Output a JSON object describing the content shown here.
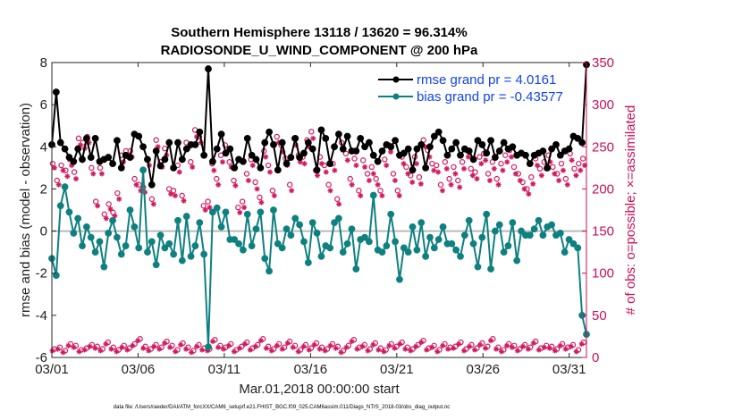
{
  "chart_data": {
    "type": "line",
    "title": "Southern Hemisphere 13118 / 13620 = 96.314%",
    "subtitle": "RADIOSONDE_U_WIND_COMPONENT @ 200 hPa",
    "xlabel": "Mar.01,2018 00:00:00 start",
    "ylabel": "rmse and bias (model - observation)",
    "y2label": "# of obs: o=possible; ×=assimilated",
    "x_ticks": [
      "03/01",
      "03/06",
      "03/11",
      "03/16",
      "03/21",
      "03/26",
      "03/31"
    ],
    "x_tick_days": [
      0,
      5,
      10,
      15,
      20,
      25,
      30
    ],
    "xlim": [
      0,
      31.0
    ],
    "ylim": [
      -6,
      8
    ],
    "y_ticks": [
      "-6",
      "-4",
      "-2",
      "0",
      "2",
      "4",
      "6",
      "8"
    ],
    "y2lim": [
      0,
      350
    ],
    "y2_ticks": [
      "0",
      "50",
      "100",
      "150",
      "200",
      "250",
      "300",
      "350"
    ],
    "zero_line": 0,
    "legend_position": "top-right",
    "series": [
      {
        "name": "rmse grand pr = 4.0161",
        "color": "#000000",
        "values": [
          4.1,
          6.6,
          4.2,
          3.9,
          3.5,
          3.3,
          3.9,
          3.4,
          4.4,
          3.5,
          4.4,
          3.3,
          3.4,
          3.5,
          3.2,
          4.3,
          3.0,
          3.6,
          3.5,
          4.6,
          4.5,
          4.0,
          3.4,
          3.3,
          3.8,
          3.1,
          3.4,
          4.2,
          3.0,
          4.2,
          3.4,
          3.9,
          4.1,
          4.1,
          4.7,
          3.6,
          4.3,
          3.3,
          3.9,
          4.6,
          3.7,
          3.9,
          3.0,
          3.4,
          3.3,
          4.4,
          3.6,
          3.4,
          3.0,
          4.2,
          4.7,
          4.1,
          2.9,
          4.2,
          3.2,
          3.5,
          4.4,
          3.5,
          3.7,
          4.2,
          3.9,
          2.9,
          4.8,
          4.4,
          3.2,
          4.0,
          4.6,
          3.9,
          4.5,
          3.8,
          3.8,
          4.4,
          4.0,
          4.2,
          3.6,
          3.3,
          3.8,
          4.1,
          4.0,
          4.3,
          3.6,
          3.7,
          3.9,
          2.9,
          3.9,
          4.1,
          3.0,
          4.0,
          4.5,
          4.7,
          4.3,
          3.6,
          3.9,
          4.2,
          3.6,
          3.9,
          3.8,
          3.4,
          4.3,
          4.1,
          3.7,
          4.3,
          3.5,
          3.8,
          4.2,
          3.9,
          4.0,
          3.6,
          3.7,
          3.6,
          3.2,
          3.6,
          3.7,
          3.8,
          3.0,
          3.9,
          4.1,
          3.6,
          3.8,
          3.9,
          4.5,
          4.4,
          4.2,
          7.9
        ],
        "spikes": [
          [
            9.0,
            7.7
          ],
          [
            5.8,
            2.2
          ]
        ]
      },
      {
        "name": "bias grand pr = -0.43577",
        "color": "#0f8080",
        "values": [
          -1.3,
          -2.1,
          1.2,
          2.1,
          0.9,
          -0.1,
          0.6,
          -0.7,
          0.2,
          -0.3,
          -1.0,
          -0.5,
          -1.7,
          -0.1,
          0.5,
          -0.3,
          -1.1,
          -0.7,
          1.0,
          0.2,
          -0.8,
          -1.9,
          -1.0,
          -0.5,
          -1.6,
          -0.2,
          -0.8,
          -0.6,
          -1.1,
          0.5,
          -1.4,
          0.7,
          -1.2,
          -0.7,
          0.4,
          -1.1,
          -0.1,
          0.9,
          1.1,
          0.2,
          0.9,
          -0.4,
          -0.4,
          -0.6,
          -0.9,
          0.8,
          -0.7,
          0.1,
          0.9,
          -1.3,
          -1.9,
          1.0,
          -0.6,
          -0.8,
          0.1,
          -0.2,
          0.6,
          0.3,
          -0.5,
          -1.5,
          0.4,
          -0.1,
          -1.2,
          -0.7,
          -0.8,
          0.4,
          0.6,
          -1.0,
          -0.6,
          0.1,
          -1.8,
          -0.4,
          -0.3,
          -0.5,
          1.7,
          -0.9,
          -1.0,
          -0.7,
          0.8,
          -0.5,
          -2.3,
          -0.8,
          -1.0,
          0.2,
          -0.9,
          0.4,
          -1.2,
          -0.3,
          -0.8,
          -0.4,
          0.2,
          -0.6,
          -0.6,
          -0.9,
          -1.2,
          -0.2,
          0.5,
          -0.6,
          -1.7,
          -0.3,
          0.8,
          -1.8,
          0.0,
          0.3,
          -1.0,
          -0.7,
          0.4,
          -1.4,
          0.0,
          -0.2,
          -0.2,
          0.1,
          0.5,
          -0.2,
          0.2,
          0.3,
          -0.2,
          -0.1,
          -1.0,
          -0.4,
          -0.6,
          -0.8,
          -4.0,
          -4.9
        ],
        "spikes": [
          [
            5.4,
            2.9
          ],
          [
            9.15,
            -5.5
          ]
        ]
      }
    ],
    "obs_possible": {
      "marker": "o",
      "color": "#d21a5f",
      "values": [
        230,
        210,
        228,
        222,
        235,
        220,
        260,
        255,
        262,
        225,
        185,
        225,
        170,
        182,
        172,
        195,
        240,
        245,
        245,
        212,
        205,
        202,
        235,
        188,
        258,
        232,
        248,
        200,
        198,
        228,
        192,
        255,
        232,
        270,
        262,
        180,
        185,
        230,
        212,
        240,
        252,
        232,
        210,
        178,
        185,
        218,
        235,
        208,
        190,
        245,
        228,
        198,
        262,
        252,
        236,
        205,
        260,
        240,
        238,
        258,
        268,
        222,
        238,
        228,
        205,
        230,
        188,
        255,
        242,
        212,
        236,
        198,
        234,
        218,
        226,
        212,
        198,
        235,
        252,
        218,
        198,
        238,
        226,
        216,
        238,
        214,
        258,
        246,
        230,
        228,
        205,
        232,
        212,
        226,
        210,
        232,
        246,
        224,
        220,
        238,
        242,
        218,
        232,
        212,
        230,
        240,
        246,
        226,
        218,
        208,
        200,
        214,
        236,
        224,
        232,
        240,
        226,
        218,
        230,
        212,
        242,
        224,
        230,
        236
      ],
      "low_values": [
        10,
        12,
        8,
        16,
        14,
        9,
        11,
        15,
        13,
        10,
        18,
        12,
        9,
        14,
        11,
        16,
        22,
        13,
        10,
        15,
        12,
        19,
        14,
        9,
        17,
        12,
        8,
        15,
        11,
        10,
        21,
        14,
        12,
        16,
        9,
        13,
        18,
        11,
        15,
        22,
        13,
        10,
        16,
        12,
        19,
        14,
        9,
        15,
        11,
        17,
        12,
        10,
        16,
        13,
        8,
        14,
        21,
        12,
        15,
        10,
        17,
        11,
        9,
        16,
        13,
        18,
        12,
        10,
        15,
        20,
        11,
        14,
        9,
        16,
        12,
        13,
        18,
        10,
        15,
        11,
        17,
        13,
        22,
        12,
        9,
        16,
        14,
        10,
        15,
        12,
        19,
        11,
        14,
        13,
        10,
        16,
        12,
        15,
        9,
        18
      ]
    },
    "obs_assimilated": {
      "marker": "×",
      "color": "#d21a5f",
      "values": [
        225,
        205,
        222,
        215,
        228,
        212,
        252,
        248,
        255,
        218,
        180,
        218,
        165,
        176,
        168,
        188,
        232,
        238,
        238,
        205,
        198,
        196,
        228,
        182,
        250,
        226,
        240,
        194,
        192,
        220,
        186,
        248,
        226,
        262,
        255,
        175,
        178,
        222,
        205,
        232,
        244,
        226,
        204,
        172,
        178,
        210,
        228,
        200,
        184,
        238,
        220,
        192,
        255,
        244,
        228,
        198,
        252,
        232,
        230,
        250,
        260,
        216,
        230,
        220,
        198,
        222,
        182,
        246,
        234,
        205,
        228,
        192,
        226,
        210,
        218,
        205,
        192,
        228,
        244,
        210,
        192,
        230,
        218,
        208,
        230,
        206,
        250,
        238,
        222,
        220,
        198,
        224,
        205,
        218,
        202,
        224,
        238,
        216,
        212,
        230,
        234,
        210,
        224,
        205,
        222,
        232,
        238,
        218,
        210,
        200,
        194,
        206,
        228,
        216,
        224,
        232,
        218,
        210,
        222,
        205,
        234,
        216,
        222,
        228
      ],
      "low_values": [
        8,
        10,
        6,
        14,
        12,
        7,
        9,
        13,
        11,
        8,
        16,
        10,
        7,
        12,
        9,
        14,
        20,
        11,
        8,
        13,
        10,
        17,
        12,
        7,
        15,
        10,
        6,
        13,
        9,
        8,
        19,
        12,
        10,
        14,
        7,
        11,
        16,
        9,
        13,
        20,
        11,
        8,
        14,
        10,
        17,
        12,
        7,
        13,
        9,
        15,
        10,
        8,
        14,
        11,
        6,
        12,
        19,
        10,
        13,
        8,
        15,
        9,
        7,
        14,
        11,
        16,
        10,
        8,
        13,
        18,
        9,
        12,
        7,
        14,
        10,
        11,
        16,
        8,
        13,
        9,
        15,
        11,
        20,
        10,
        7,
        14,
        12,
        8,
        13,
        10,
        17,
        9,
        12,
        11,
        8,
        14,
        10,
        13,
        7,
        16
      ]
    },
    "footer": "data file: /Users/raeder/DAI/ATM_forcXX/CAM6_setup/f.e21.FHIST_BGC.f09_025.CAM6assim.011/Diags_NTrS_2018-03/obs_diag_output.nc"
  }
}
